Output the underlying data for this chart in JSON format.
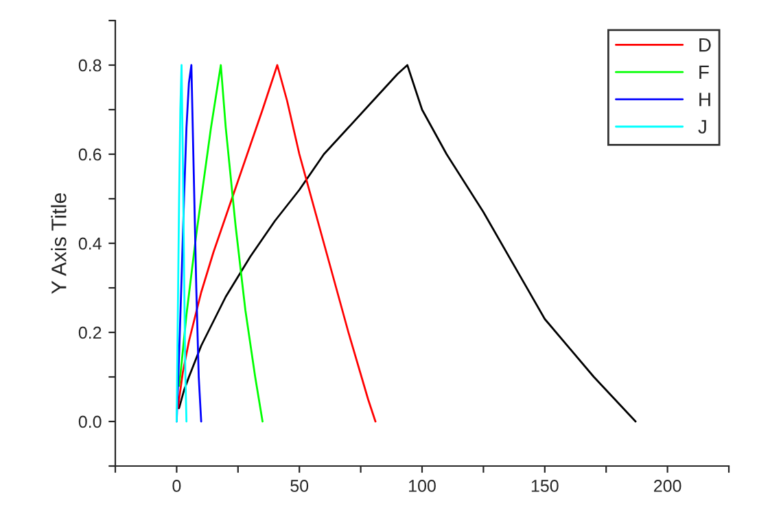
{
  "chart_data": {
    "type": "line",
    "ylabel": "Y Axis Title",
    "xlim": [
      -25,
      225
    ],
    "xticks": [
      {
        "value": -25,
        "label": null
      },
      0,
      {
        "value": 25,
        "label": null
      },
      50,
      {
        "value": 75,
        "label": null
      },
      100,
      {
        "value": 125,
        "label": null
      },
      150,
      {
        "value": 175,
        "label": null
      },
      200,
      {
        "value": 225,
        "label": null
      }
    ],
    "ylim": [
      -0.1,
      0.9
    ],
    "yticks": [
      {
        "value": -0.1,
        "label": null
      },
      {
        "value": 0.0,
        "label": "0.0"
      },
      {
        "value": 0.1,
        "label": null
      },
      {
        "value": 0.2,
        "label": "0.2"
      },
      {
        "value": 0.3,
        "label": null
      },
      {
        "value": 0.4,
        "label": "0.4"
      },
      {
        "value": 0.5,
        "label": null
      },
      {
        "value": 0.6,
        "label": "0.6"
      },
      {
        "value": 0.7,
        "label": null
      },
      {
        "value": 0.8,
        "label": "0.8"
      },
      {
        "value": 0.9,
        "label": null
      }
    ],
    "grid": false,
    "legend": "top right",
    "marker": "none",
    "line_style": "solid",
    "series": [
      {
        "color": "#000000",
        "x": [
          1,
          3,
          5,
          10,
          20,
          30,
          40,
          50,
          60,
          70,
          80,
          90,
          94,
          100,
          110,
          125,
          150,
          170,
          187
        ],
        "values": [
          0.03,
          0.07,
          0.1,
          0.17,
          0.28,
          0.37,
          0.45,
          0.52,
          0.6,
          0.66,
          0.72,
          0.78,
          0.8,
          0.7,
          0.6,
          0.47,
          0.23,
          0.1,
          0.0
        ]
      },
      {
        "name": "D",
        "color": "#ff0000",
        "x": [
          0.5,
          1.5,
          2.5,
          5,
          10,
          15,
          20,
          25,
          30,
          35,
          41,
          45,
          50,
          60,
          70,
          78,
          81
        ],
        "values": [
          0.03,
          0.07,
          0.11,
          0.18,
          0.29,
          0.38,
          0.46,
          0.54,
          0.62,
          0.7,
          0.8,
          0.72,
          0.6,
          0.4,
          0.2,
          0.05,
          0.0
        ]
      },
      {
        "name": "F",
        "color": "#00ff00",
        "x": [
          1,
          2,
          4,
          6,
          8,
          10,
          12,
          14,
          16,
          18,
          20,
          24,
          28,
          32,
          35
        ],
        "values": [
          0.08,
          0.13,
          0.24,
          0.33,
          0.42,
          0.5,
          0.58,
          0.66,
          0.73,
          0.8,
          0.66,
          0.44,
          0.25,
          0.1,
          0.0
        ]
      },
      {
        "name": "H",
        "color": "#0000ff",
        "x": [
          0,
          1,
          2,
          3,
          4,
          5,
          6,
          7,
          8,
          9,
          10
        ],
        "values": [
          0.0,
          0.15,
          0.32,
          0.5,
          0.66,
          0.76,
          0.8,
          0.55,
          0.3,
          0.1,
          0.0
        ]
      },
      {
        "name": "J",
        "color": "#00ffff",
        "x": [
          0,
          0.5,
          1,
          1.5,
          2,
          2.5,
          3,
          3.5,
          4
        ],
        "values": [
          0.0,
          0.25,
          0.5,
          0.7,
          0.8,
          0.6,
          0.35,
          0.12,
          0.0
        ]
      }
    ]
  }
}
